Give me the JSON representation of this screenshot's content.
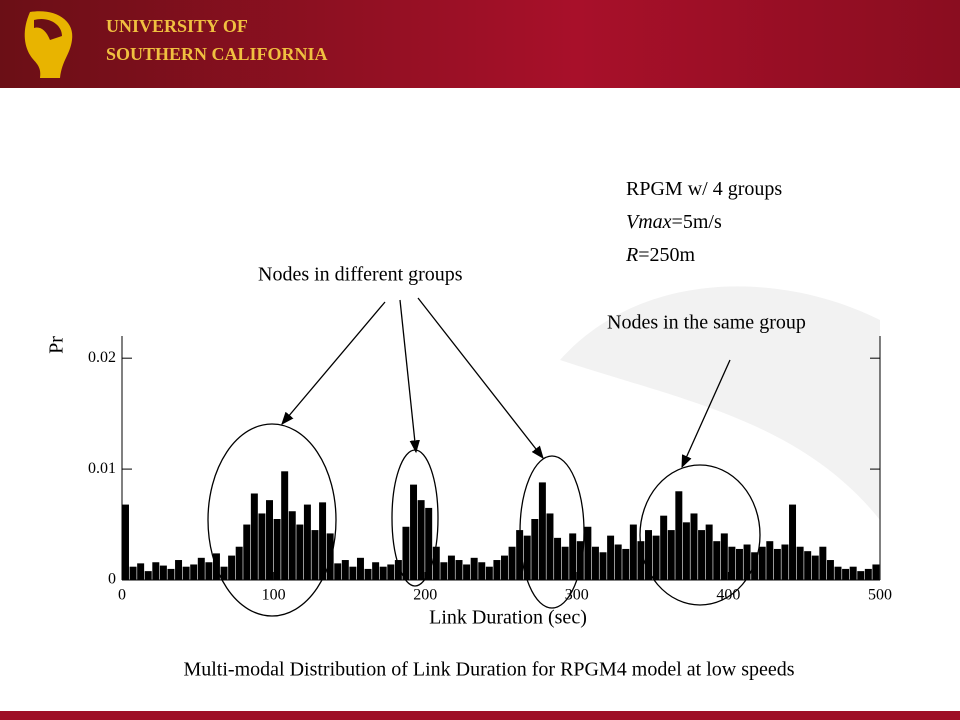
{
  "header": {
    "lines": [
      "UNIVERSITY OF",
      "SOUTHERN CALIFORNIA"
    ]
  },
  "chart_data": {
    "type": "histogram",
    "ylabel": "Pr",
    "xlabel": "Link Duration (sec)",
    "color": "#000000",
    "bins": [
      0,
      5,
      10,
      15,
      20,
      25,
      30,
      35,
      40,
      45,
      50,
      55,
      60,
      65,
      70,
      75,
      80,
      85,
      90,
      95,
      100,
      105,
      110,
      115,
      120,
      125,
      130,
      135,
      140,
      145,
      150,
      155,
      160,
      165,
      170,
      175,
      180,
      185,
      190,
      195,
      200,
      205,
      210,
      215,
      220,
      225,
      230,
      235,
      240,
      245,
      250,
      255,
      260,
      265,
      270,
      275,
      280,
      285,
      290,
      295,
      300,
      305,
      310,
      315,
      320,
      325,
      330,
      335,
      340,
      345,
      350,
      355,
      360,
      365,
      370,
      375,
      380,
      385,
      390,
      395,
      400,
      405,
      410,
      415,
      420,
      425,
      430,
      435,
      440,
      445,
      450,
      455,
      460,
      465,
      470,
      475,
      480,
      485,
      490,
      495,
      500
    ],
    "values": [
      0.0068,
      0.0012,
      0.0015,
      0.0008,
      0.0016,
      0.0013,
      0.001,
      0.0018,
      0.0012,
      0.0014,
      0.002,
      0.0016,
      0.0024,
      0.0012,
      0.0022,
      0.003,
      0.005,
      0.0078,
      0.006,
      0.0072,
      0.0055,
      0.0098,
      0.0062,
      0.005,
      0.0068,
      0.0045,
      0.007,
      0.0042,
      0.0015,
      0.0018,
      0.0012,
      0.002,
      0.001,
      0.0016,
      0.0012,
      0.0014,
      0.0018,
      0.0048,
      0.0086,
      0.0072,
      0.0065,
      0.003,
      0.0016,
      0.0022,
      0.0018,
      0.0014,
      0.002,
      0.0016,
      0.0012,
      0.0018,
      0.0022,
      0.003,
      0.0045,
      0.004,
      0.0055,
      0.0088,
      0.006,
      0.0038,
      0.003,
      0.0042,
      0.0035,
      0.0048,
      0.003,
      0.0025,
      0.004,
      0.0032,
      0.0028,
      0.005,
      0.0035,
      0.0045,
      0.004,
      0.0058,
      0.0045,
      0.008,
      0.0052,
      0.006,
      0.0045,
      0.005,
      0.0035,
      0.0042,
      0.003,
      0.0028,
      0.0032,
      0.0025,
      0.003,
      0.0035,
      0.0028,
      0.0032,
      0.0068,
      0.003,
      0.0026,
      0.0022,
      0.003,
      0.0018,
      0.0012,
      0.001,
      0.0012,
      0.0008,
      0.001,
      0.0014
    ],
    "xlim": [
      0,
      500
    ],
    "ylim": [
      0,
      0.022
    ],
    "xticks": [
      0,
      100,
      200,
      300,
      400,
      500
    ],
    "yticks": [
      0,
      0.01,
      0.02
    ],
    "annotations": {
      "params": [
        [
          {
            "text": "RPGM w/ 4 groups",
            "italic": false
          }
        ],
        [
          {
            "text": "Vmax",
            "italic": true
          },
          {
            "text": "=5m/s",
            "italic": false
          }
        ],
        [
          {
            "text": "R",
            "italic": true
          },
          {
            "text": "=250m",
            "italic": false
          }
        ]
      ],
      "different": "Nodes in different groups",
      "same": "Nodes in the same group"
    },
    "caption": "Multi-modal Distribution of Link Duration for RPGM4 model at low speeds"
  }
}
